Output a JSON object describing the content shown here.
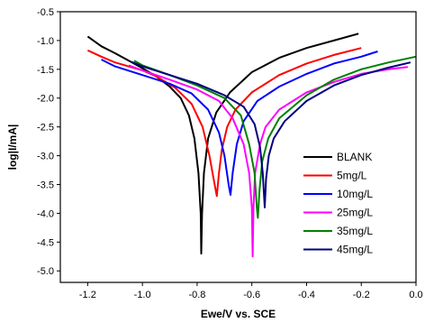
{
  "chart_data": {
    "type": "line",
    "title": "",
    "xlabel": "Ewe/V vs. SCE",
    "ylabel": "log|I/mA|",
    "xlim": [
      -1.3,
      0.0
    ],
    "ylim": [
      -5.2,
      -0.5
    ],
    "x_ticks": [
      -1.2,
      -1.0,
      -0.8,
      -0.6,
      -0.4,
      -0.2,
      0.0
    ],
    "x_tick_labels": [
      "-1.2",
      "-1.0",
      "-0.8",
      "-0.6",
      "-0.4",
      "-0.2",
      "0.0"
    ],
    "y_ticks": [
      -0.5,
      -1.0,
      -1.5,
      -2.0,
      -2.5,
      -3.0,
      -3.5,
      -4.0,
      -4.5,
      -5.0
    ],
    "y_tick_labels": [
      "-0.5",
      "-1.0",
      "-1.5",
      "-2.0",
      "-2.5",
      "-3.0",
      "-3.5",
      "-4.0",
      "-4.5",
      "-5.0"
    ],
    "grid": false,
    "legend_position": "bottom-right",
    "series": [
      {
        "name": "BLANK",
        "color": "#000000",
        "points": [
          [
            -1.2,
            -0.93
          ],
          [
            -1.15,
            -1.1
          ],
          [
            -1.1,
            -1.22
          ],
          [
            -1.05,
            -1.35
          ],
          [
            -1.0,
            -1.48
          ],
          [
            -0.95,
            -1.62
          ],
          [
            -0.9,
            -1.8
          ],
          [
            -0.86,
            -2.0
          ],
          [
            -0.83,
            -2.3
          ],
          [
            -0.81,
            -2.7
          ],
          [
            -0.795,
            -3.3
          ],
          [
            -0.787,
            -4.0
          ],
          [
            -0.785,
            -4.7
          ],
          [
            -0.782,
            -4.0
          ],
          [
            -0.775,
            -3.3
          ],
          [
            -0.76,
            -2.7
          ],
          [
            -0.73,
            -2.25
          ],
          [
            -0.68,
            -1.9
          ],
          [
            -0.6,
            -1.55
          ],
          [
            -0.5,
            -1.3
          ],
          [
            -0.4,
            -1.13
          ],
          [
            -0.3,
            -1.0
          ],
          [
            -0.21,
            -0.88
          ]
        ]
      },
      {
        "name": "5mg/L",
        "color": "#ff0000",
        "points": [
          [
            -1.2,
            -1.17
          ],
          [
            -1.15,
            -1.28
          ],
          [
            -1.1,
            -1.38
          ],
          [
            -1.0,
            -1.52
          ],
          [
            -0.95,
            -1.62
          ],
          [
            -0.88,
            -1.82
          ],
          [
            -0.82,
            -2.1
          ],
          [
            -0.78,
            -2.5
          ],
          [
            -0.755,
            -3.0
          ],
          [
            -0.74,
            -3.4
          ],
          [
            -0.728,
            -3.7
          ],
          [
            -0.72,
            -3.3
          ],
          [
            -0.71,
            -2.9
          ],
          [
            -0.69,
            -2.5
          ],
          [
            -0.66,
            -2.2
          ],
          [
            -0.6,
            -1.9
          ],
          [
            -0.5,
            -1.6
          ],
          [
            -0.4,
            -1.4
          ],
          [
            -0.3,
            -1.25
          ],
          [
            -0.2,
            -1.13
          ]
        ]
      },
      {
        "name": "10mg/L",
        "color": "#0000ff",
        "points": [
          [
            -1.15,
            -1.33
          ],
          [
            -1.1,
            -1.45
          ],
          [
            -1.0,
            -1.6
          ],
          [
            -0.9,
            -1.75
          ],
          [
            -0.82,
            -1.92
          ],
          [
            -0.76,
            -2.2
          ],
          [
            -0.72,
            -2.6
          ],
          [
            -0.7,
            -3.0
          ],
          [
            -0.685,
            -3.5
          ],
          [
            -0.678,
            -3.68
          ],
          [
            -0.67,
            -3.3
          ],
          [
            -0.655,
            -2.8
          ],
          [
            -0.63,
            -2.4
          ],
          [
            -0.58,
            -2.05
          ],
          [
            -0.5,
            -1.8
          ],
          [
            -0.4,
            -1.58
          ],
          [
            -0.3,
            -1.4
          ],
          [
            -0.2,
            -1.28
          ],
          [
            -0.14,
            -1.19
          ]
        ]
      },
      {
        "name": "25mg/L",
        "color": "#ff00ff",
        "points": [
          [
            -1.05,
            -1.43
          ],
          [
            -1.0,
            -1.52
          ],
          [
            -0.9,
            -1.68
          ],
          [
            -0.8,
            -1.85
          ],
          [
            -0.72,
            -2.05
          ],
          [
            -0.67,
            -2.35
          ],
          [
            -0.63,
            -2.8
          ],
          [
            -0.61,
            -3.3
          ],
          [
            -0.6,
            -3.9
          ],
          [
            -0.597,
            -4.75
          ],
          [
            -0.594,
            -3.9
          ],
          [
            -0.588,
            -3.3
          ],
          [
            -0.57,
            -2.8
          ],
          [
            -0.55,
            -2.5
          ],
          [
            -0.5,
            -2.2
          ],
          [
            -0.4,
            -1.9
          ],
          [
            -0.3,
            -1.72
          ],
          [
            -0.2,
            -1.58
          ],
          [
            -0.1,
            -1.5
          ],
          [
            -0.03,
            -1.46
          ]
        ]
      },
      {
        "name": "35mg/L",
        "color": "#008000",
        "points": [
          [
            -1.03,
            -1.35
          ],
          [
            -1.0,
            -1.43
          ],
          [
            -0.9,
            -1.6
          ],
          [
            -0.8,
            -1.78
          ],
          [
            -0.7,
            -2.0
          ],
          [
            -0.64,
            -2.3
          ],
          [
            -0.61,
            -2.8
          ],
          [
            -0.59,
            -3.3
          ],
          [
            -0.582,
            -3.9
          ],
          [
            -0.578,
            -4.08
          ],
          [
            -0.572,
            -3.6
          ],
          [
            -0.562,
            -3.1
          ],
          [
            -0.54,
            -2.7
          ],
          [
            -0.5,
            -2.35
          ],
          [
            -0.4,
            -1.95
          ],
          [
            -0.3,
            -1.68
          ],
          [
            -0.2,
            -1.5
          ],
          [
            -0.1,
            -1.38
          ],
          [
            0.0,
            -1.28
          ]
        ]
      },
      {
        "name": "45mg/L",
        "color": "#000080",
        "points": [
          [
            -1.04,
            -1.37
          ],
          [
            -1.0,
            -1.45
          ],
          [
            -0.9,
            -1.6
          ],
          [
            -0.8,
            -1.75
          ],
          [
            -0.7,
            -1.95
          ],
          [
            -0.63,
            -2.15
          ],
          [
            -0.59,
            -2.45
          ],
          [
            -0.57,
            -2.85
          ],
          [
            -0.56,
            -3.3
          ],
          [
            -0.553,
            -3.9
          ],
          [
            -0.548,
            -3.4
          ],
          [
            -0.538,
            -3.0
          ],
          [
            -0.52,
            -2.7
          ],
          [
            -0.48,
            -2.4
          ],
          [
            -0.4,
            -2.05
          ],
          [
            -0.3,
            -1.78
          ],
          [
            -0.2,
            -1.6
          ],
          [
            -0.1,
            -1.47
          ],
          [
            -0.02,
            -1.38
          ]
        ]
      }
    ]
  }
}
